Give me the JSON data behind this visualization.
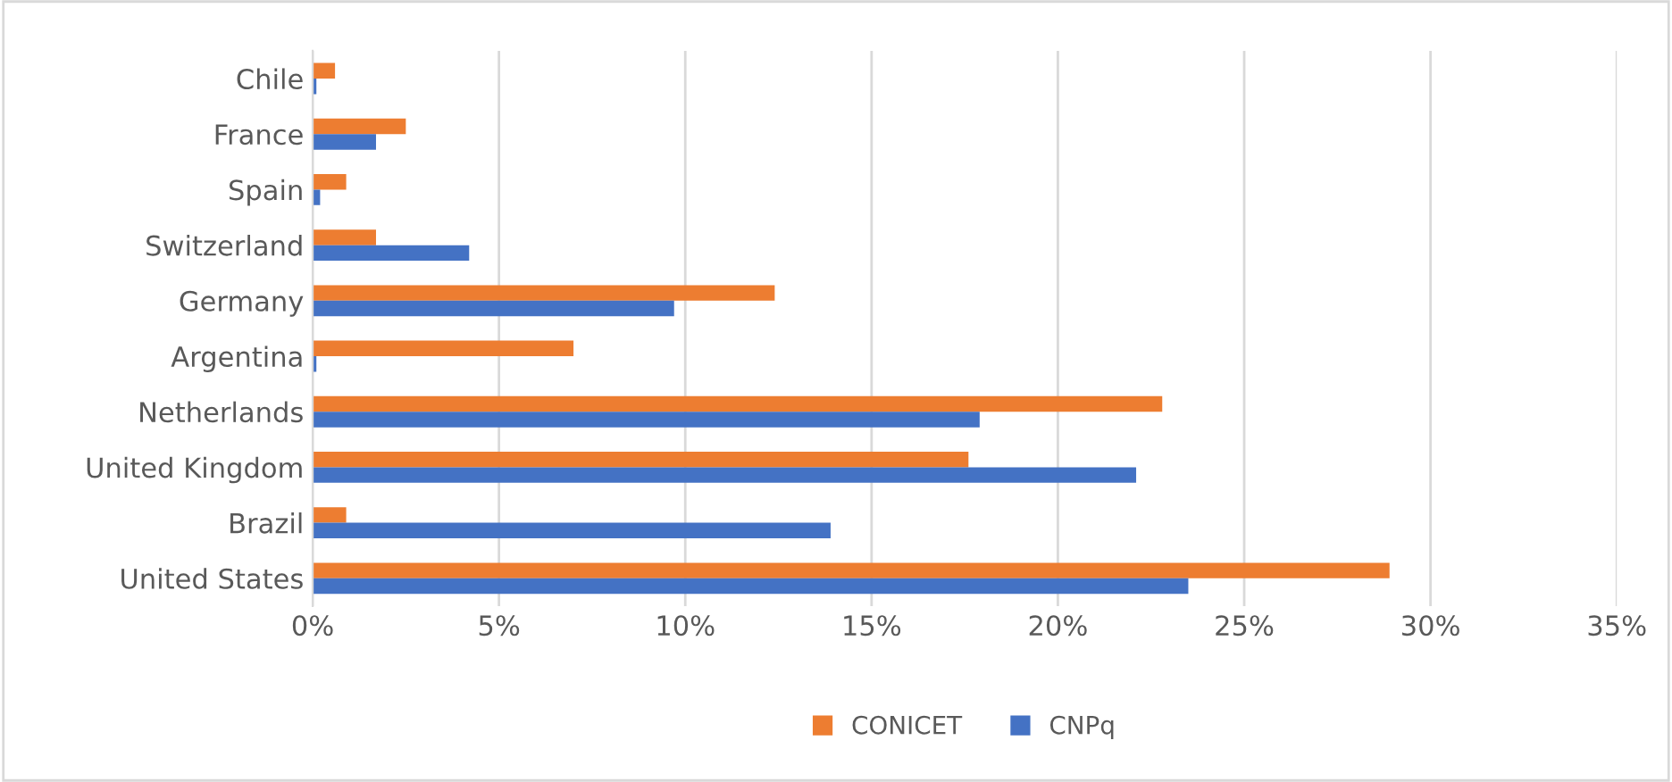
{
  "chart_data": {
    "type": "bar",
    "orientation": "horizontal",
    "categories": [
      "Chile",
      "France",
      "Spain",
      "Switzerland",
      "Germany",
      "Argentina",
      "Netherlands",
      "United Kingdom",
      "Brazil",
      "United States"
    ],
    "series": [
      {
        "name": "CONICET",
        "color": "#ed7d31",
        "values": [
          0.6,
          2.5,
          0.9,
          1.7,
          12.4,
          7.0,
          22.8,
          17.6,
          0.9,
          28.9
        ]
      },
      {
        "name": "CNPq",
        "color": "#4472c4",
        "values": [
          0.1,
          1.7,
          0.2,
          4.2,
          9.7,
          0.1,
          17.9,
          22.1,
          13.9,
          23.5
        ]
      }
    ],
    "xlim": [
      0,
      35
    ],
    "xticks": [
      {
        "value": 0,
        "label": "0%"
      },
      {
        "value": 5,
        "label": "5%"
      },
      {
        "value": 10,
        "label": "10%"
      },
      {
        "value": 15,
        "label": "15%"
      },
      {
        "value": 20,
        "label": "20%"
      },
      {
        "value": 25,
        "label": "25%"
      },
      {
        "value": 30,
        "label": "30%"
      },
      {
        "value": 35,
        "label": "35%"
      }
    ],
    "grid": "x",
    "legend": "bottom"
  }
}
